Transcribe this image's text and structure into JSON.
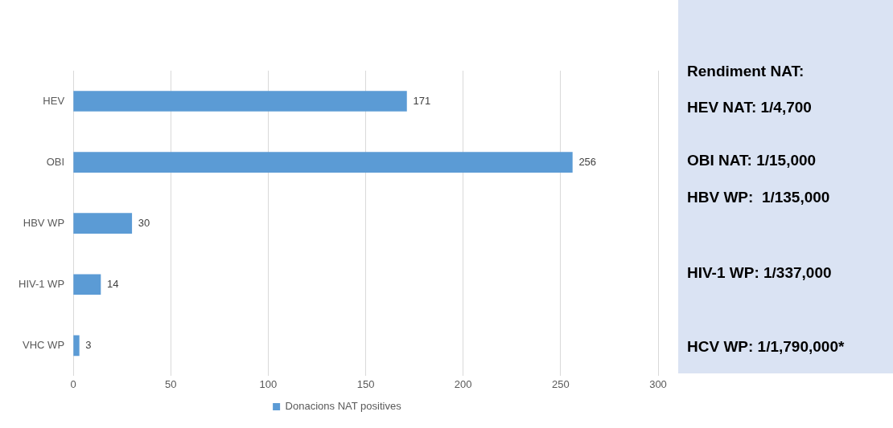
{
  "chart_data": {
    "type": "bar",
    "orientation": "horizontal",
    "categories": [
      "HEV",
      "OBI",
      "HBV WP",
      "HIV-1 WP",
      "VHC WP"
    ],
    "series": [
      {
        "name": "Donacions NAT positives",
        "color": "#5b9bd5",
        "values": [
          171,
          256,
          30,
          14,
          3
        ]
      }
    ],
    "xlim": [
      0,
      300
    ],
    "xticks": [
      0,
      50,
      100,
      150,
      200,
      250,
      300
    ],
    "grid": "x",
    "legend": "bottom",
    "data_labels": true,
    "annotations": [
      "Rendiment NAT:",
      "HEV NAT: 1/4,700",
      "OBI NAT: 1/15,000",
      "HBV WP:  1/135,000",
      "HIV-1 WP: 1/337,000",
      "HCV WP: 1/1,790,000*"
    ]
  }
}
